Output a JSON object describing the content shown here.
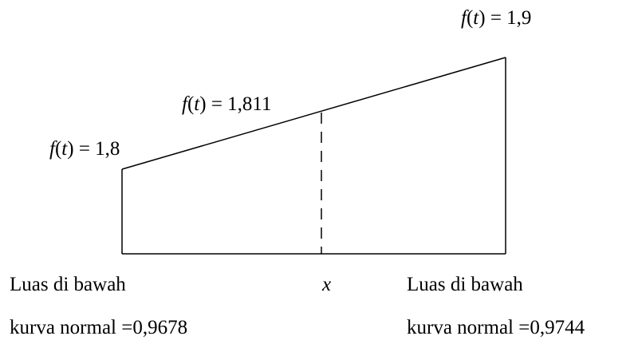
{
  "function_symbol": "f",
  "variable_symbol": "t",
  "points": {
    "left": {
      "equals": " = ",
      "value": "1,8"
    },
    "middle": {
      "equals": " = ",
      "value": "1,811"
    },
    "right": {
      "equals": " = ",
      "value": "1,9"
    }
  },
  "x_label": "x",
  "areas": {
    "left": {
      "line1": "Luas di bawah",
      "line2": "kurva normal =0,9678"
    },
    "right": {
      "line1": "Luas di bawah",
      "line2": "kurva normal =0,9744"
    }
  }
}
